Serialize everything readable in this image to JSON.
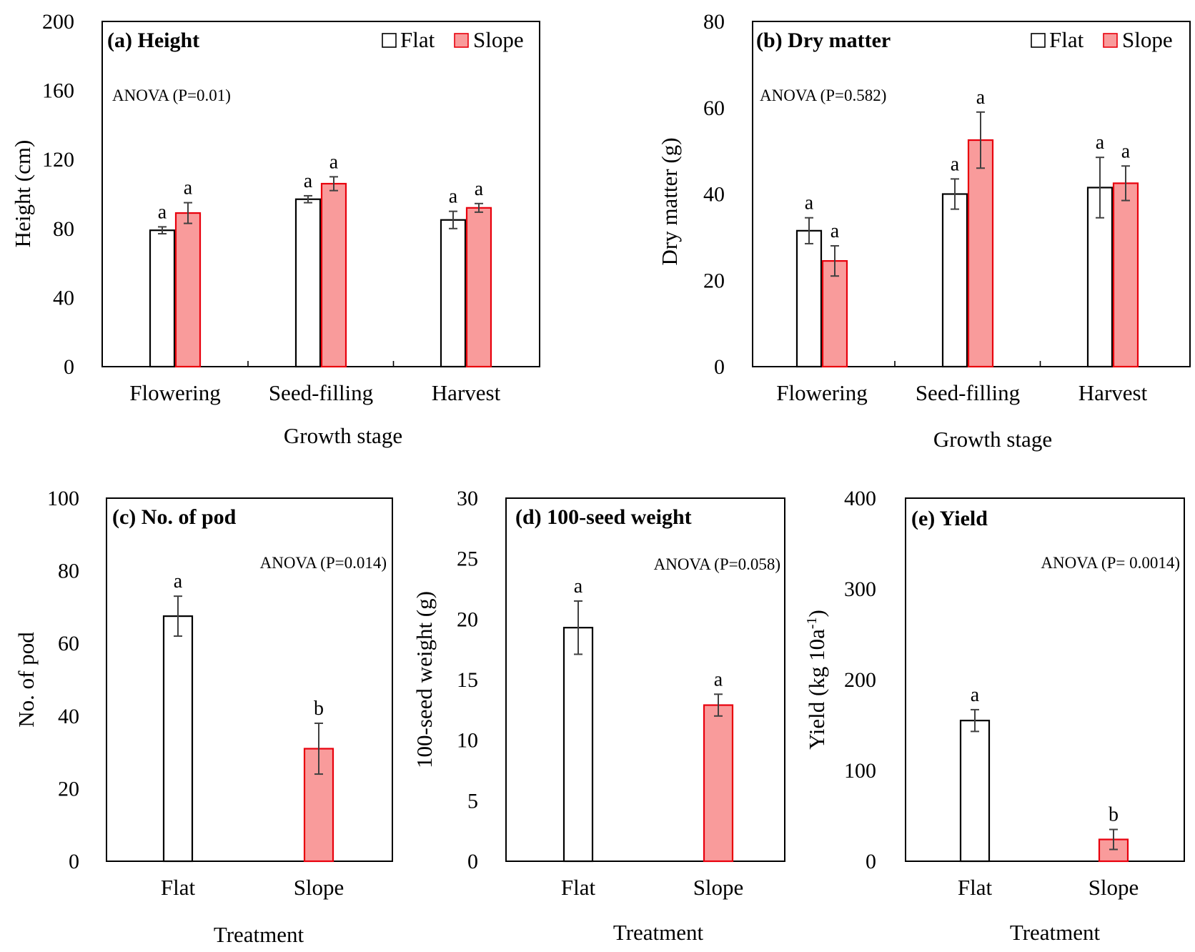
{
  "figure": {
    "legend": [
      {
        "name": "Flat",
        "fill": "#ffffff",
        "stroke": "#000000"
      },
      {
        "name": "Slope",
        "fill": "#f99b9b",
        "stroke": "#e8000d"
      }
    ],
    "errorbar_color": "#404040"
  },
  "chart_data": [
    {
      "id": "a",
      "type": "bar",
      "title": "(a) Height",
      "anova": "ANOVA (P=0.01)",
      "xlabel": "Growth stage",
      "ylabel": "Height (cm)",
      "ylim": [
        0,
        200
      ],
      "yticks": [
        0,
        40,
        80,
        120,
        160,
        200
      ],
      "categories": [
        "Flowering",
        "Seed-filling",
        "Harvest"
      ],
      "show_legend": true,
      "series": [
        {
          "name": "Flat",
          "values": [
            79,
            97,
            85
          ],
          "errors": [
            2,
            2,
            5
          ],
          "letters": [
            "a",
            "a",
            "a"
          ]
        },
        {
          "name": "Slope",
          "values": [
            89,
            106,
            92
          ],
          "errors": [
            6,
            4,
            2.5
          ],
          "letters": [
            "a",
            "a",
            "a"
          ]
        }
      ]
    },
    {
      "id": "b",
      "type": "bar",
      "title": "(b) Dry matter",
      "anova": "ANOVA (P=0.582)",
      "xlabel": "Growth stage",
      "ylabel": "Dry matter (g)",
      "ylim": [
        0,
        80
      ],
      "yticks": [
        0,
        20,
        40,
        60,
        80
      ],
      "categories": [
        "Flowering",
        "Seed-filling",
        "Harvest"
      ],
      "show_legend": true,
      "series": [
        {
          "name": "Flat",
          "values": [
            31.5,
            40,
            41.5
          ],
          "errors": [
            3,
            3.5,
            7
          ],
          "letters": [
            "a",
            "a",
            "a"
          ]
        },
        {
          "name": "Slope",
          "values": [
            24.5,
            52.5,
            42.5
          ],
          "errors": [
            3.5,
            6.5,
            4
          ],
          "letters": [
            "a",
            "a",
            "a"
          ]
        }
      ]
    },
    {
      "id": "c",
      "type": "bar",
      "title": "(c) No. of pod",
      "anova": "ANOVA (P=0.014)",
      "xlabel": "Treatment",
      "ylabel": "No. of pod",
      "ylim": [
        0,
        100
      ],
      "yticks": [
        0,
        20,
        40,
        60,
        80,
        100
      ],
      "categories": [
        "Flat",
        "Slope"
      ],
      "show_legend": false,
      "bars": [
        {
          "name": "Flat",
          "value": 67.5,
          "error": 5.5,
          "letter": "a"
        },
        {
          "name": "Slope",
          "value": 31,
          "error": 7,
          "letter": "b"
        }
      ]
    },
    {
      "id": "d",
      "type": "bar",
      "title": "(d) 100-seed weight",
      "anova": "ANOVA (P=0.058)",
      "xlabel": "Treatment",
      "ylabel": "100-seed weight (g)",
      "ylim": [
        0,
        30
      ],
      "yticks": [
        0,
        5,
        10,
        15,
        20,
        25,
        30
      ],
      "categories": [
        "Flat",
        "Slope"
      ],
      "show_legend": false,
      "bars": [
        {
          "name": "Flat",
          "value": 19.3,
          "error": 2.2,
          "letter": "a"
        },
        {
          "name": "Slope",
          "value": 12.9,
          "error": 0.9,
          "letter": "a"
        }
      ]
    },
    {
      "id": "e",
      "type": "bar",
      "title": "(e) Yield",
      "anova": "ANOVA (P= 0.0014)",
      "xlabel": "Treatment",
      "ylabel": "Yield (kg 10a",
      "ylabel_sup": "-1",
      "ylabel_close": ")",
      "ylim": [
        0,
        400
      ],
      "yticks": [
        0,
        100,
        200,
        300,
        400
      ],
      "categories": [
        "Flat",
        "Slope"
      ],
      "show_legend": false,
      "bars": [
        {
          "name": "Flat",
          "value": 155,
          "error": 12,
          "letter": "a"
        },
        {
          "name": "Slope",
          "value": 24,
          "error": 11,
          "letter": "b"
        }
      ]
    }
  ]
}
